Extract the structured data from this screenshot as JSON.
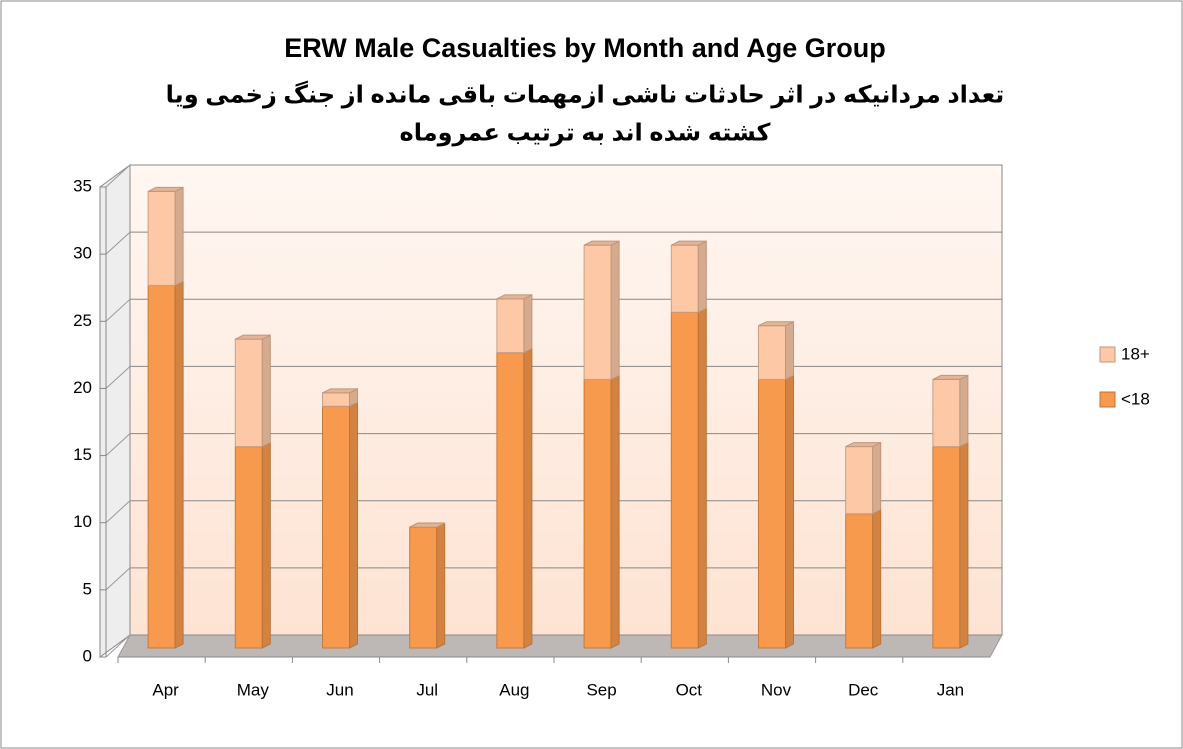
{
  "chart_data": {
    "type": "stacked_bar_3d",
    "title": "ERW Male Casualties by Month and Age Group",
    "subtitle": [
      "تعداد مردانیکه در اثر حادثات ناشی ازمهمات باقی مانده از جنگ زخمی ویا",
      "کشته شده اند به ترتیب عمروماه"
    ],
    "categories": [
      "Apr",
      "May",
      "Jun",
      "Jul",
      "Aug",
      "Sep",
      "Oct",
      "Nov",
      "Dec",
      "Jan"
    ],
    "series": [
      {
        "name": "<18",
        "color": "#f79a4e",
        "values": [
          27,
          15,
          18,
          9,
          22,
          20,
          25,
          20,
          10,
          15
        ]
      },
      {
        "name": "18+",
        "color": "#fcc8a6",
        "values": [
          7,
          8,
          1,
          0,
          4,
          10,
          5,
          4,
          5,
          5
        ]
      }
    ],
    "ylim": [
      0,
      35
    ],
    "yticks": [
      0,
      5,
      10,
      15,
      20,
      25,
      30,
      35
    ],
    "grid": true,
    "legend": "right"
  }
}
